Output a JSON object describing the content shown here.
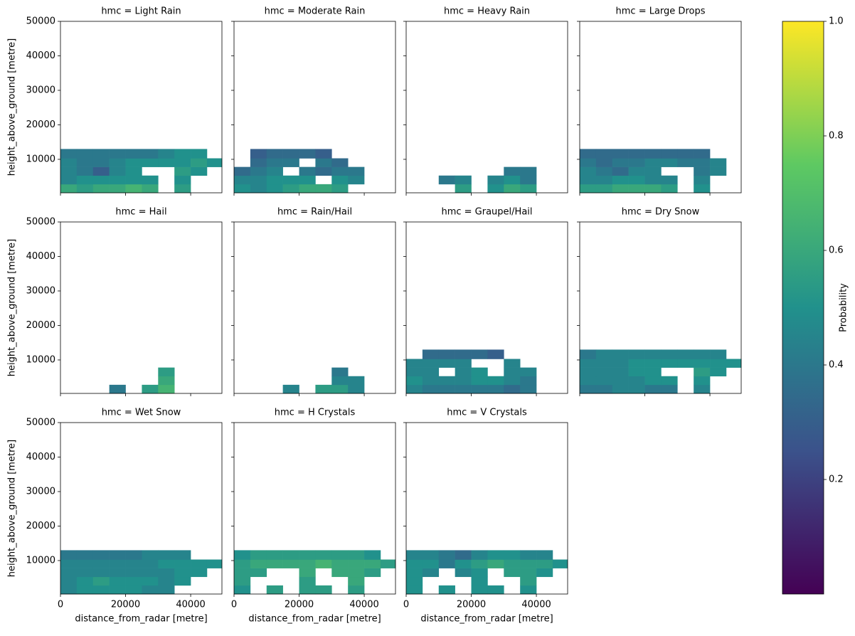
{
  "chart_data": {
    "type": "heatmap",
    "xlabel": "distance_from_radar [metre]",
    "ylabel": "height_above_ground [metre]",
    "colorbar_label": "Probability",
    "colormap": "viridis",
    "clim": [
      0,
      1
    ],
    "cticks": [
      0.2,
      0.4,
      0.6,
      0.8,
      {
        "value": 1,
        "label": "1.0"
      }
    ],
    "xlim": [
      0,
      49600
    ],
    "ylim": [
      300,
      50000
    ],
    "xticks": [
      0,
      20000,
      40000
    ],
    "yticks": [
      10000,
      20000,
      30000,
      40000,
      50000
    ],
    "xbins": [
      0,
      5000,
      10000,
      15000,
      20000,
      25000,
      30000,
      35000,
      40000,
      45000,
      49600
    ],
    "ybins": [
      300,
      2800,
      5300,
      7800,
      10300,
      13000
    ],
    "panels": [
      {
        "title": "hmc = Light Rain",
        "z": [
          [
            0.6,
            0.55,
            0.6,
            0.6,
            0.65,
            0.6,
            null,
            0.55,
            null,
            null
          ],
          [
            0.45,
            0.5,
            0.5,
            0.5,
            0.5,
            0.5,
            null,
            0.5,
            null,
            null
          ],
          [
            0.45,
            0.4,
            0.3,
            0.45,
            0.5,
            null,
            null,
            0.55,
            0.5,
            null
          ],
          [
            0.45,
            0.4,
            0.4,
            0.45,
            0.5,
            0.5,
            0.5,
            0.5,
            0.55,
            0.5
          ],
          [
            0.4,
            0.4,
            0.4,
            0.4,
            0.4,
            0.4,
            0.45,
            0.5,
            0.5,
            null
          ]
        ]
      },
      {
        "title": "hmc = Moderate Rain",
        "z": [
          [
            0.5,
            0.45,
            0.5,
            0.55,
            0.6,
            0.6,
            0.55,
            null,
            null,
            null
          ],
          [
            0.45,
            0.45,
            0.5,
            0.5,
            0.5,
            null,
            0.5,
            0.45,
            null,
            null
          ],
          [
            0.35,
            0.4,
            0.45,
            null,
            0.4,
            0.35,
            0.4,
            0.4,
            null,
            null
          ],
          [
            null,
            0.35,
            0.4,
            0.4,
            null,
            0.4,
            0.35,
            null,
            null,
            null
          ],
          [
            null,
            0.3,
            0.35,
            0.35,
            0.35,
            0.3,
            null,
            null,
            null,
            null
          ]
        ]
      },
      {
        "title": "hmc = Heavy Rain",
        "z": [
          [
            null,
            null,
            null,
            0.55,
            null,
            0.5,
            0.6,
            0.55,
            null,
            null
          ],
          [
            null,
            null,
            0.4,
            0.45,
            null,
            0.45,
            0.5,
            0.4,
            null,
            null
          ],
          [
            null,
            null,
            null,
            null,
            null,
            null,
            0.4,
            0.4,
            null,
            null
          ],
          [
            null,
            null,
            null,
            null,
            null,
            null,
            null,
            null,
            null,
            null
          ],
          [
            null,
            null,
            null,
            null,
            null,
            null,
            null,
            null,
            null,
            null
          ]
        ]
      },
      {
        "title": "hmc = Large Drops",
        "z": [
          [
            0.55,
            0.55,
            0.6,
            0.6,
            0.6,
            0.55,
            null,
            0.5,
            null,
            null
          ],
          [
            0.45,
            0.45,
            0.5,
            0.5,
            0.45,
            0.45,
            null,
            0.45,
            null,
            null
          ],
          [
            0.45,
            0.4,
            0.35,
            0.45,
            0.45,
            null,
            null,
            0.4,
            0.45,
            null
          ],
          [
            0.4,
            0.35,
            0.4,
            0.4,
            0.45,
            0.45,
            0.4,
            0.4,
            0.45,
            null
          ],
          [
            0.35,
            0.35,
            0.35,
            0.35,
            0.35,
            0.35,
            0.35,
            0.35,
            null,
            null
          ]
        ]
      },
      {
        "title": "hmc = Hail",
        "z": [
          [
            null,
            null,
            null,
            0.4,
            null,
            0.55,
            0.65,
            null,
            null,
            null
          ],
          [
            null,
            null,
            null,
            null,
            null,
            null,
            0.6,
            null,
            null,
            null
          ],
          [
            null,
            null,
            null,
            null,
            null,
            null,
            0.55,
            null,
            null,
            null
          ],
          [
            null,
            null,
            null,
            null,
            null,
            null,
            null,
            null,
            null,
            null
          ],
          [
            null,
            null,
            null,
            null,
            null,
            null,
            null,
            null,
            null,
            null
          ]
        ]
      },
      {
        "title": "hmc = Rain/Hail",
        "z": [
          [
            null,
            null,
            null,
            0.45,
            null,
            0.55,
            0.55,
            0.45,
            null,
            null
          ],
          [
            null,
            null,
            null,
            null,
            null,
            null,
            0.45,
            0.45,
            null,
            null
          ],
          [
            null,
            null,
            null,
            null,
            null,
            null,
            0.4,
            null,
            null,
            null
          ],
          [
            null,
            null,
            null,
            null,
            null,
            null,
            null,
            null,
            null,
            null
          ],
          [
            null,
            null,
            null,
            null,
            null,
            null,
            null,
            null,
            null,
            null
          ]
        ]
      },
      {
        "title": "hmc = Graupel/Hail",
        "z": [
          [
            0.45,
            0.4,
            0.4,
            0.4,
            0.4,
            0.4,
            0.35,
            0.4,
            null,
            null
          ],
          [
            0.5,
            0.45,
            0.45,
            0.45,
            0.5,
            0.5,
            0.45,
            0.4,
            null,
            null
          ],
          [
            0.45,
            0.45,
            null,
            0.45,
            0.5,
            null,
            0.45,
            0.45,
            null,
            null
          ],
          [
            0.45,
            0.45,
            0.45,
            0.45,
            null,
            null,
            0.45,
            null,
            null,
            null
          ],
          [
            null,
            0.35,
            0.35,
            0.35,
            0.35,
            0.3,
            null,
            null,
            null,
            null
          ]
        ]
      },
      {
        "title": "hmc = Dry Snow",
        "z": [
          [
            0.4,
            0.4,
            0.45,
            0.45,
            0.4,
            0.4,
            null,
            0.45,
            null,
            null
          ],
          [
            0.45,
            0.45,
            0.45,
            0.45,
            0.5,
            0.5,
            null,
            0.5,
            null,
            null
          ],
          [
            0.45,
            0.45,
            0.45,
            0.5,
            0.5,
            null,
            null,
            0.55,
            0.5,
            null
          ],
          [
            0.45,
            0.45,
            0.45,
            0.5,
            0.5,
            0.5,
            0.5,
            0.5,
            0.5,
            0.5
          ],
          [
            0.4,
            0.45,
            0.45,
            0.45,
            0.45,
            0.45,
            0.45,
            0.45,
            0.45,
            null
          ]
        ]
      },
      {
        "title": "hmc = Wet Snow",
        "z": [
          [
            0.45,
            0.5,
            0.5,
            0.5,
            0.5,
            0.45,
            0.45,
            null,
            null,
            null
          ],
          [
            0.45,
            0.5,
            0.55,
            0.5,
            0.5,
            0.5,
            0.45,
            0.5,
            null,
            null
          ],
          [
            0.45,
            0.45,
            0.45,
            0.45,
            0.45,
            0.45,
            0.45,
            0.5,
            0.5,
            null
          ],
          [
            0.45,
            0.45,
            0.45,
            0.45,
            0.45,
            0.45,
            0.5,
            0.5,
            0.5,
            0.5
          ],
          [
            0.4,
            0.4,
            0.4,
            0.4,
            0.4,
            0.45,
            0.45,
            0.45,
            null,
            null
          ]
        ]
      },
      {
        "title": "hmc = H Crystals",
        "z": [
          [
            0.5,
            null,
            0.55,
            null,
            0.55,
            0.55,
            null,
            0.55,
            null,
            null
          ],
          [
            0.55,
            null,
            null,
            null,
            0.55,
            null,
            null,
            0.6,
            null,
            null
          ],
          [
            0.55,
            0.55,
            null,
            null,
            0.6,
            null,
            0.6,
            0.6,
            0.55,
            null
          ],
          [
            0.55,
            0.6,
            0.6,
            0.6,
            0.6,
            0.65,
            0.6,
            0.6,
            0.6,
            0.55
          ],
          [
            0.5,
            0.55,
            0.55,
            0.55,
            0.55,
            0.55,
            0.55,
            0.55,
            0.5,
            null
          ]
        ]
      },
      {
        "title": "hmc = V Crystals",
        "z": [
          [
            0.5,
            null,
            0.5,
            null,
            0.5,
            0.5,
            null,
            0.5,
            null,
            null
          ],
          [
            0.5,
            null,
            null,
            null,
            0.5,
            null,
            null,
            0.55,
            null,
            null
          ],
          [
            0.5,
            0.45,
            null,
            0.45,
            0.5,
            null,
            0.55,
            0.55,
            0.5,
            null
          ],
          [
            0.5,
            0.5,
            0.4,
            0.5,
            0.55,
            0.6,
            0.55,
            0.55,
            0.55,
            0.5
          ],
          [
            0.45,
            0.45,
            0.4,
            0.35,
            0.45,
            0.5,
            0.5,
            0.45,
            0.45,
            null
          ]
        ]
      }
    ]
  }
}
